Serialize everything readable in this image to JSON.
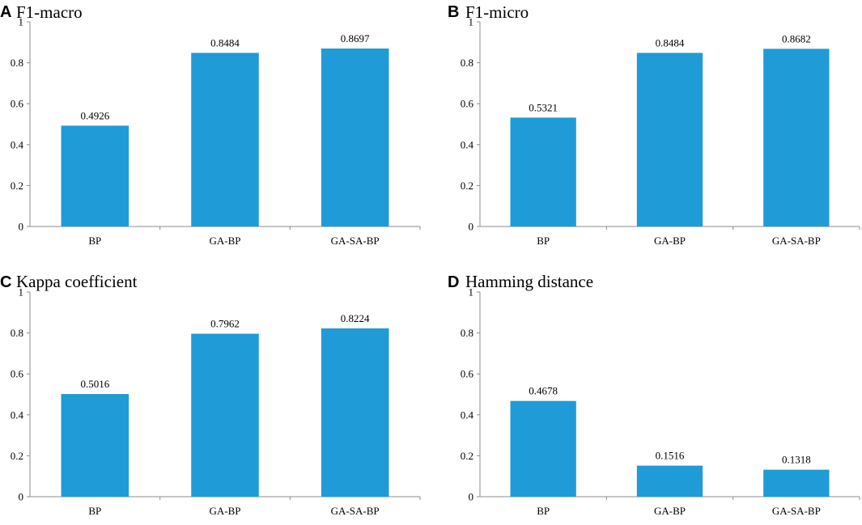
{
  "figure": {
    "bar_color": "#1f9bd7",
    "axis_color": "#8c8c8c"
  },
  "chart_data": [
    {
      "type": "bar",
      "panel_label": "A",
      "title": "F1-macro",
      "categories": [
        "BP",
        "GA-BP",
        "GA-SA-BP"
      ],
      "values": [
        0.4926,
        0.8484,
        0.8697
      ],
      "value_labels": [
        "0.4926",
        "0.8484",
        "0.8697"
      ],
      "yticks": [
        "0",
        "0.2",
        "0.4",
        "0.6",
        "0.8",
        "1"
      ],
      "ylim": [
        0,
        1
      ],
      "xlabel": "",
      "ylabel": ""
    },
    {
      "type": "bar",
      "panel_label": "B",
      "title": "F1-micro",
      "categories": [
        "BP",
        "GA-BP",
        "GA-SA-BP"
      ],
      "values": [
        0.5321,
        0.8484,
        0.8682
      ],
      "value_labels": [
        "0.5321",
        "0.8484",
        "0.8682"
      ],
      "yticks": [
        "0",
        "0.2",
        "0.4",
        "0.6",
        "0.8",
        "1"
      ],
      "ylim": [
        0,
        1
      ],
      "xlabel": "",
      "ylabel": ""
    },
    {
      "type": "bar",
      "panel_label": "C",
      "title": "Kappa coefficient",
      "categories": [
        "BP",
        "GA-BP",
        "GA-SA-BP"
      ],
      "values": [
        0.5016,
        0.7962,
        0.8224
      ],
      "value_labels": [
        "0.5016",
        "0.7962",
        "0.8224"
      ],
      "yticks": [
        "0",
        "0.2",
        "0.4",
        "0.6",
        "0.8",
        "1"
      ],
      "ylim": [
        0,
        1
      ],
      "xlabel": "",
      "ylabel": ""
    },
    {
      "type": "bar",
      "panel_label": "D",
      "title": "Hamming distance",
      "categories": [
        "BP",
        "GA-BP",
        "GA-SA-BP"
      ],
      "values": [
        0.4678,
        0.1516,
        0.1318
      ],
      "value_labels": [
        "0.4678",
        "0.1516",
        "0.1318"
      ],
      "yticks": [
        "0",
        "0.2",
        "0.4",
        "0.6",
        "0.8",
        "1"
      ],
      "ylim": [
        0,
        1
      ],
      "xlabel": "",
      "ylabel": ""
    }
  ]
}
